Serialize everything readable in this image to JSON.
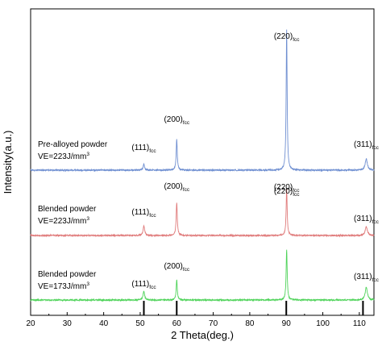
{
  "chart_data": {
    "type": "line",
    "xlabel": "2 Theta(deg.)",
    "ylabel": "Intensity(a.u.)",
    "xlim": [
      20,
      114
    ],
    "xticks": [
      20,
      30,
      40,
      50,
      60,
      70,
      80,
      90,
      100,
      110
    ],
    "y_ticks_shown": false,
    "grid": false,
    "legend": "none",
    "reference_lines_x": [
      51,
      60,
      90,
      111
    ],
    "series": [
      {
        "name": "Pre-alloyed powder",
        "name_line2": "VE=223J/mm",
        "name_line2_sup": "3",
        "color": "#6f8fd1",
        "baseline": 0,
        "peaks": [
          {
            "x": 51.0,
            "height": 7,
            "width": 0.25
          },
          {
            "x": 60.0,
            "height": 38,
            "width": 0.18
          },
          {
            "x": 90.1,
            "height": 175,
            "width": 0.16
          },
          {
            "x": 111.9,
            "height": 14,
            "width": 0.35
          }
        ],
        "annotations": [
          {
            "x": 51.0,
            "main": "(111)",
            "sub": "fcc"
          },
          {
            "x": 60.0,
            "main": "(200)",
            "sub": "fcc"
          },
          {
            "x": 90.1,
            "main": "(220)",
            "sub": "fcc"
          },
          {
            "x": 111.9,
            "main": "(311)",
            "sub": "fcc"
          }
        ]
      },
      {
        "name": "Blended powder",
        "name_line2": "VE=223J/mm",
        "name_line2_sup": "3",
        "color": "#e07b7b",
        "baseline": 0,
        "peaks": [
          {
            "x": 51.0,
            "height": 12,
            "width": 0.25
          },
          {
            "x": 60.0,
            "height": 41,
            "width": 0.18
          },
          {
            "x": 90.1,
            "height": 58,
            "width": 0.17
          },
          {
            "x": 111.9,
            "height": 11,
            "width": 0.35
          }
        ],
        "annotations": [
          {
            "x": 51.0,
            "main": "(111)",
            "sub": "fcc"
          },
          {
            "x": 60.0,
            "main": "(200)",
            "sub": "fcc"
          },
          {
            "x": 90.1,
            "main": "(220)",
            "sub": "fcc"
          },
          {
            "x": 111.9,
            "main": "(311)",
            "sub": "fcc"
          }
        ]
      },
      {
        "name": "Blended powder",
        "name_line2": "VE=173J/mm",
        "name_line2_sup": "3",
        "color": "#4fd35a",
        "baseline": 0,
        "peaks": [
          {
            "x": 51.0,
            "height": 11,
            "width": 0.25
          },
          {
            "x": 60.0,
            "height": 25,
            "width": 0.18
          },
          {
            "x": 90.1,
            "height": 63,
            "width": 0.17
          },
          {
            "x": 111.9,
            "height": 16,
            "width": 0.35
          }
        ],
        "annotations": [
          {
            "x": 51.0,
            "main": "(111)",
            "sub": "fcc"
          },
          {
            "x": 60.0,
            "main": "(200)",
            "sub": "fcc"
          },
          {
            "x": 90.1,
            "main": "(220)",
            "sub": "fcc"
          },
          {
            "x": 111.9,
            "main": "(311)",
            "sub": "fcc"
          }
        ]
      }
    ]
  }
}
